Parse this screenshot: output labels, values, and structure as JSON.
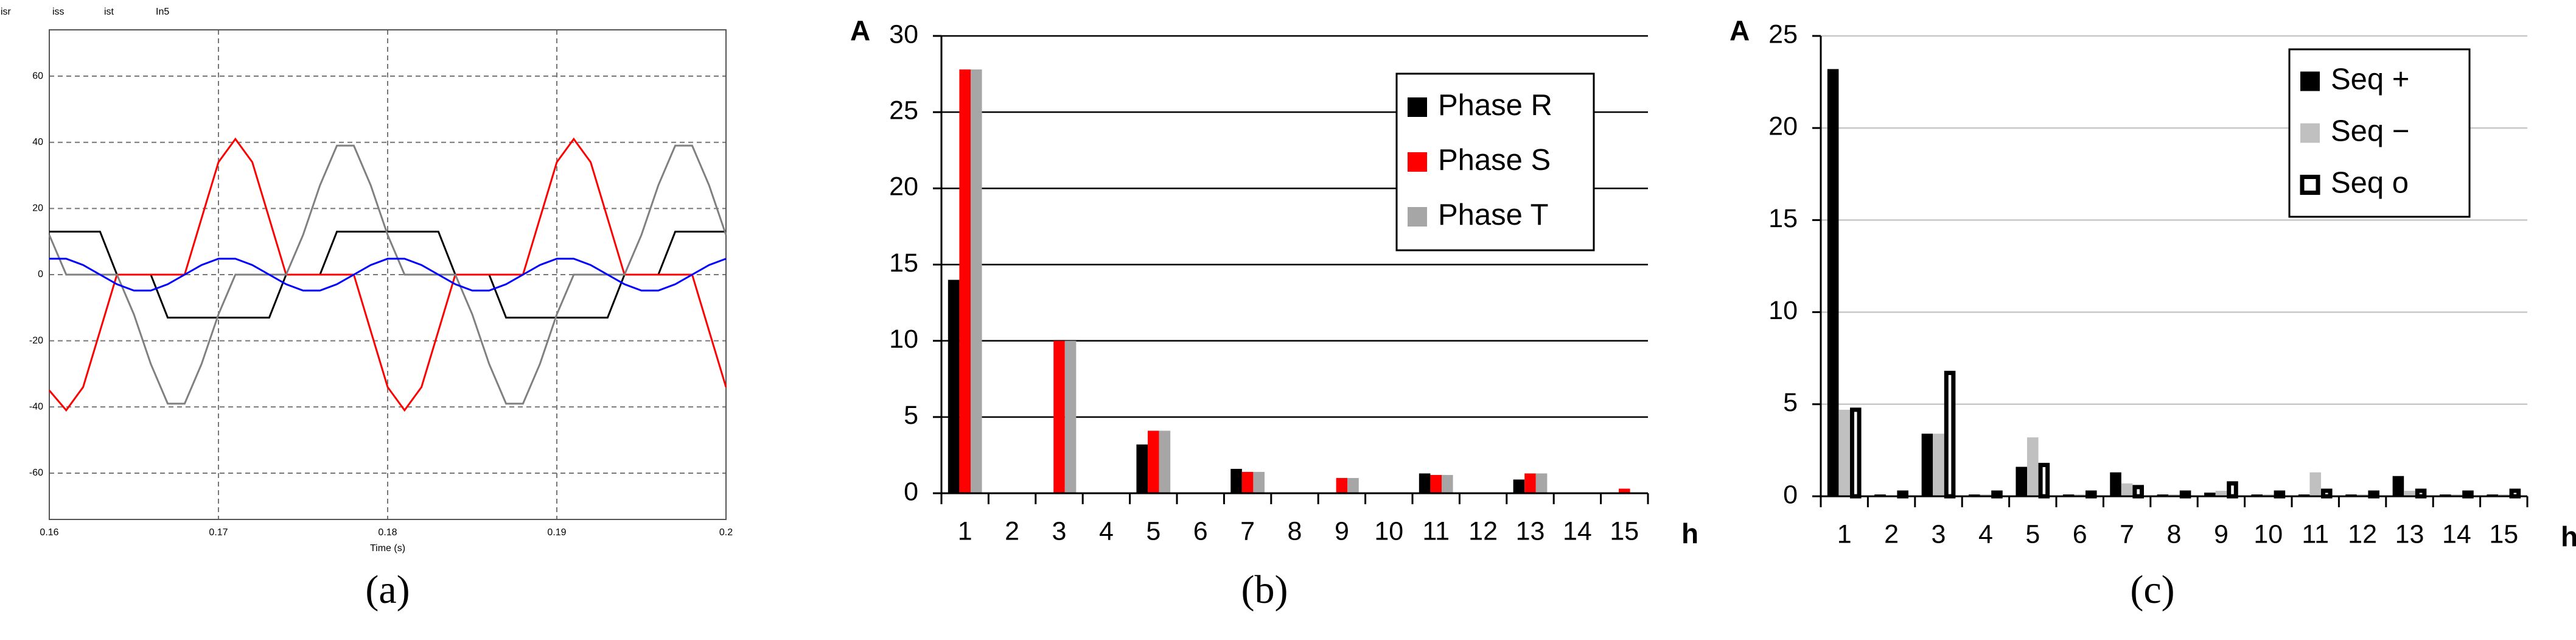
{
  "chart_data": [
    {
      "type": "line",
      "caption": "(a)",
      "xlabel": "Time (s)",
      "x": [
        0.16,
        0.161,
        0.162,
        0.163,
        0.164,
        0.165,
        0.166,
        0.167,
        0.168,
        0.169,
        0.17,
        0.171,
        0.172,
        0.173,
        0.174,
        0.175,
        0.176,
        0.177,
        0.178,
        0.179,
        0.18,
        0.181,
        0.182,
        0.183,
        0.184,
        0.185,
        0.186,
        0.187,
        0.188,
        0.189,
        0.19,
        0.191,
        0.192,
        0.193,
        0.194,
        0.195,
        0.196,
        0.197,
        0.198,
        0.199,
        0.2
      ],
      "series": [
        {
          "name": "isr",
          "color": "#000000",
          "values": [
            13,
            13,
            13,
            13,
            0,
            0,
            0,
            -13,
            -13,
            -13,
            -13,
            -13,
            -13,
            -13,
            0,
            0,
            0,
            13,
            13,
            13,
            13,
            13,
            13,
            13,
            0,
            0,
            0,
            -13,
            -13,
            -13,
            -13,
            -13,
            -13,
            -13,
            0,
            0,
            0,
            13,
            13,
            13,
            13
          ]
        },
        {
          "name": "iss",
          "color": "#ff0000",
          "values": [
            -35,
            -41,
            -34,
            -17,
            0,
            0,
            0,
            0,
            0,
            17,
            34,
            41,
            34,
            17,
            0,
            0,
            0,
            0,
            0,
            -17,
            -34,
            -41,
            -34,
            -17,
            0,
            0,
            0,
            0,
            0,
            17,
            34,
            41,
            34,
            17,
            0,
            0,
            0,
            0,
            0,
            -17,
            -34
          ]
        },
        {
          "name": "ist",
          "color": "#808080",
          "values": [
            12,
            0,
            0,
            0,
            0,
            -12,
            -27,
            -39,
            -39,
            -27,
            -12,
            0,
            0,
            0,
            0,
            12,
            27,
            39,
            39,
            27,
            12,
            0,
            0,
            0,
            0,
            -12,
            -27,
            -39,
            -39,
            -27,
            -12,
            0,
            0,
            0,
            0,
            12,
            27,
            39,
            39,
            27,
            12
          ]
        },
        {
          "name": "In5",
          "color": "#0000ff",
          "values": [
            4.8,
            4.8,
            2.9,
            0,
            -2.9,
            -4.8,
            -4.8,
            -2.9,
            0,
            2.9,
            4.8,
            4.8,
            2.9,
            0,
            -2.9,
            -4.8,
            -4.8,
            -2.9,
            0,
            2.9,
            4.8,
            4.8,
            2.9,
            0,
            -2.9,
            -4.8,
            -4.8,
            -2.9,
            0,
            2.9,
            4.8,
            4.8,
            2.9,
            0,
            -2.9,
            -4.8,
            -4.8,
            -2.9,
            0,
            2.9,
            4.8
          ]
        }
      ],
      "xlim": [
        0.16,
        0.2
      ],
      "xticks": [
        0.16,
        0.17,
        0.18,
        0.19,
        0.2
      ],
      "ylim": [
        -74,
        74
      ],
      "yticks": [
        -60,
        -40,
        -20,
        0,
        20,
        40,
        60
      ],
      "grid": true,
      "grid_style": "dashed",
      "grid_color": "#777777",
      "legend": "top left"
    },
    {
      "type": "bar",
      "caption": "(b)",
      "ylabel": "A",
      "xlabel": "h",
      "categories": [
        "1",
        "2",
        "3",
        "4",
        "5",
        "6",
        "7",
        "8",
        "9",
        "10",
        "11",
        "12",
        "13",
        "14",
        "15"
      ],
      "series": [
        {
          "name": "Phase R",
          "color": "#000000",
          "values": [
            14,
            0,
            0,
            0,
            3.2,
            0,
            1.6,
            0,
            0,
            0,
            1.3,
            0,
            0.9,
            0,
            0
          ]
        },
        {
          "name": "Phase S",
          "color": "#ff0000",
          "values": [
            27.8,
            0,
            10,
            0,
            4.1,
            0,
            1.4,
            0,
            1.0,
            0,
            1.2,
            0,
            1.3,
            0,
            0.3
          ]
        },
        {
          "name": "Phase T",
          "color": "#a6a6a6",
          "values": [
            27.8,
            0,
            10,
            0,
            4.1,
            0,
            1.4,
            0,
            1.0,
            0,
            1.2,
            0,
            1.3,
            0,
            0
          ]
        }
      ],
      "ylim": [
        0,
        30
      ],
      "yticks": [
        0,
        5,
        10,
        15,
        20,
        25,
        30
      ],
      "grid": true,
      "grid_style": "solid",
      "grid_color": "#000000",
      "legend": "upper right"
    },
    {
      "type": "bar",
      "caption": "(c)",
      "ylabel": "A",
      "xlabel": "h",
      "categories": [
        "1",
        "2",
        "3",
        "4",
        "5",
        "6",
        "7",
        "8",
        "9",
        "10",
        "11",
        "12",
        "13",
        "14",
        "15"
      ],
      "series": [
        {
          "name": "Seq +",
          "color": "#000000",
          "values": [
            23.2,
            0.1,
            3.4,
            0.1,
            1.6,
            0.1,
            1.3,
            0.1,
            0.2,
            0.1,
            0.1,
            0.1,
            1.1,
            0.1,
            0.1
          ]
        },
        {
          "name": "Seq −",
          "color": "#c0c0c0",
          "values": [
            4.7,
            0,
            3.4,
            0.1,
            3.2,
            0.1,
            0.7,
            0.1,
            0.3,
            0.1,
            1.3,
            0.1,
            0.3,
            0.1,
            0.1
          ]
        },
        {
          "name": "Seq o",
          "color": "#ffffff",
          "edgecolor": "#000000",
          "values": [
            4.7,
            0.2,
            6.7,
            0.2,
            1.7,
            0.2,
            0.5,
            0.2,
            0.7,
            0.2,
            0.3,
            0.2,
            0.3,
            0.2,
            0.3
          ]
        }
      ],
      "ylim": [
        0,
        25
      ],
      "yticks": [
        0,
        5,
        10,
        15,
        20,
        25
      ],
      "grid": true,
      "grid_style": "solid",
      "grid_color": "#c8c8c8",
      "legend": "upper right"
    }
  ]
}
